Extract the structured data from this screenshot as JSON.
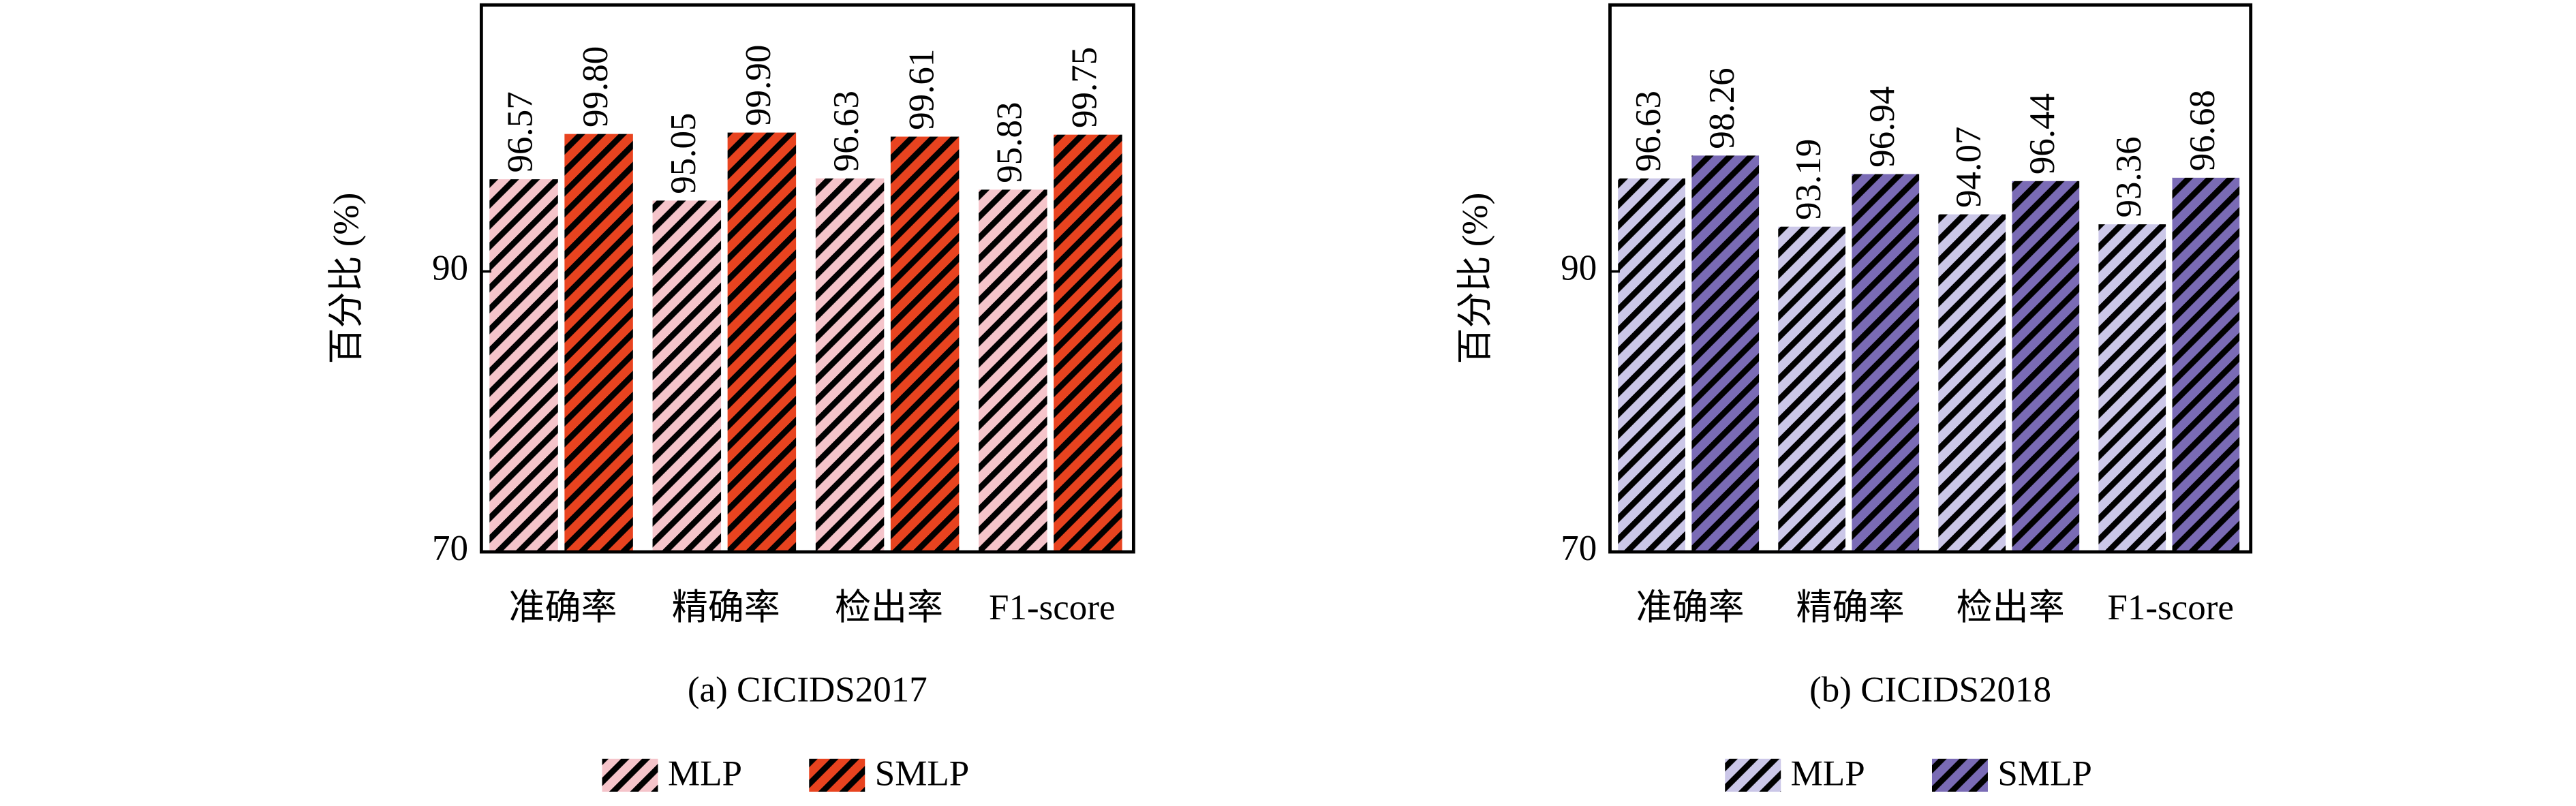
{
  "chart_data": [
    {
      "type": "bar",
      "title": "(a) CICIDS2017",
      "ylabel": "百分比 (%)",
      "categories": [
        "准确率",
        "精确率",
        "检出率",
        "F1-score"
      ],
      "series": [
        {
          "name": "MLP",
          "color": "#f5c4ca",
          "values": [
            96.57,
            95.05,
            96.63,
            95.83
          ],
          "value_labels": [
            "96.57",
            "95.05",
            "96.63",
            "95.83"
          ]
        },
        {
          "name": "SMLP",
          "color": "#e8431f",
          "values": [
            99.8,
            99.9,
            99.61,
            99.75
          ],
          "value_labels": [
            "99.80",
            "99.90",
            "99.61",
            "99.75"
          ]
        }
      ],
      "ylim": [
        70,
        109
      ],
      "yticks": [
        70,
        90
      ],
      "hatch": true
    },
    {
      "type": "bar",
      "title": "(b) CICIDS2018",
      "ylabel": "百分比 (%)",
      "categories": [
        "准确率",
        "精确率",
        "检出率",
        "F1-score"
      ],
      "series": [
        {
          "name": "MLP",
          "color": "#cbc7e8",
          "values": [
            96.63,
            93.19,
            94.07,
            93.36
          ],
          "value_labels": [
            "96.63",
            "93.19",
            "94.07",
            "93.36"
          ]
        },
        {
          "name": "SMLP",
          "color": "#7a6bb5",
          "values": [
            98.26,
            96.94,
            96.44,
            96.68
          ],
          "value_labels": [
            "98.26",
            "96.94",
            "96.44",
            "96.68"
          ]
        }
      ],
      "ylim": [
        70,
        109
      ],
      "yticks": [
        70,
        90
      ],
      "hatch": true
    }
  ]
}
